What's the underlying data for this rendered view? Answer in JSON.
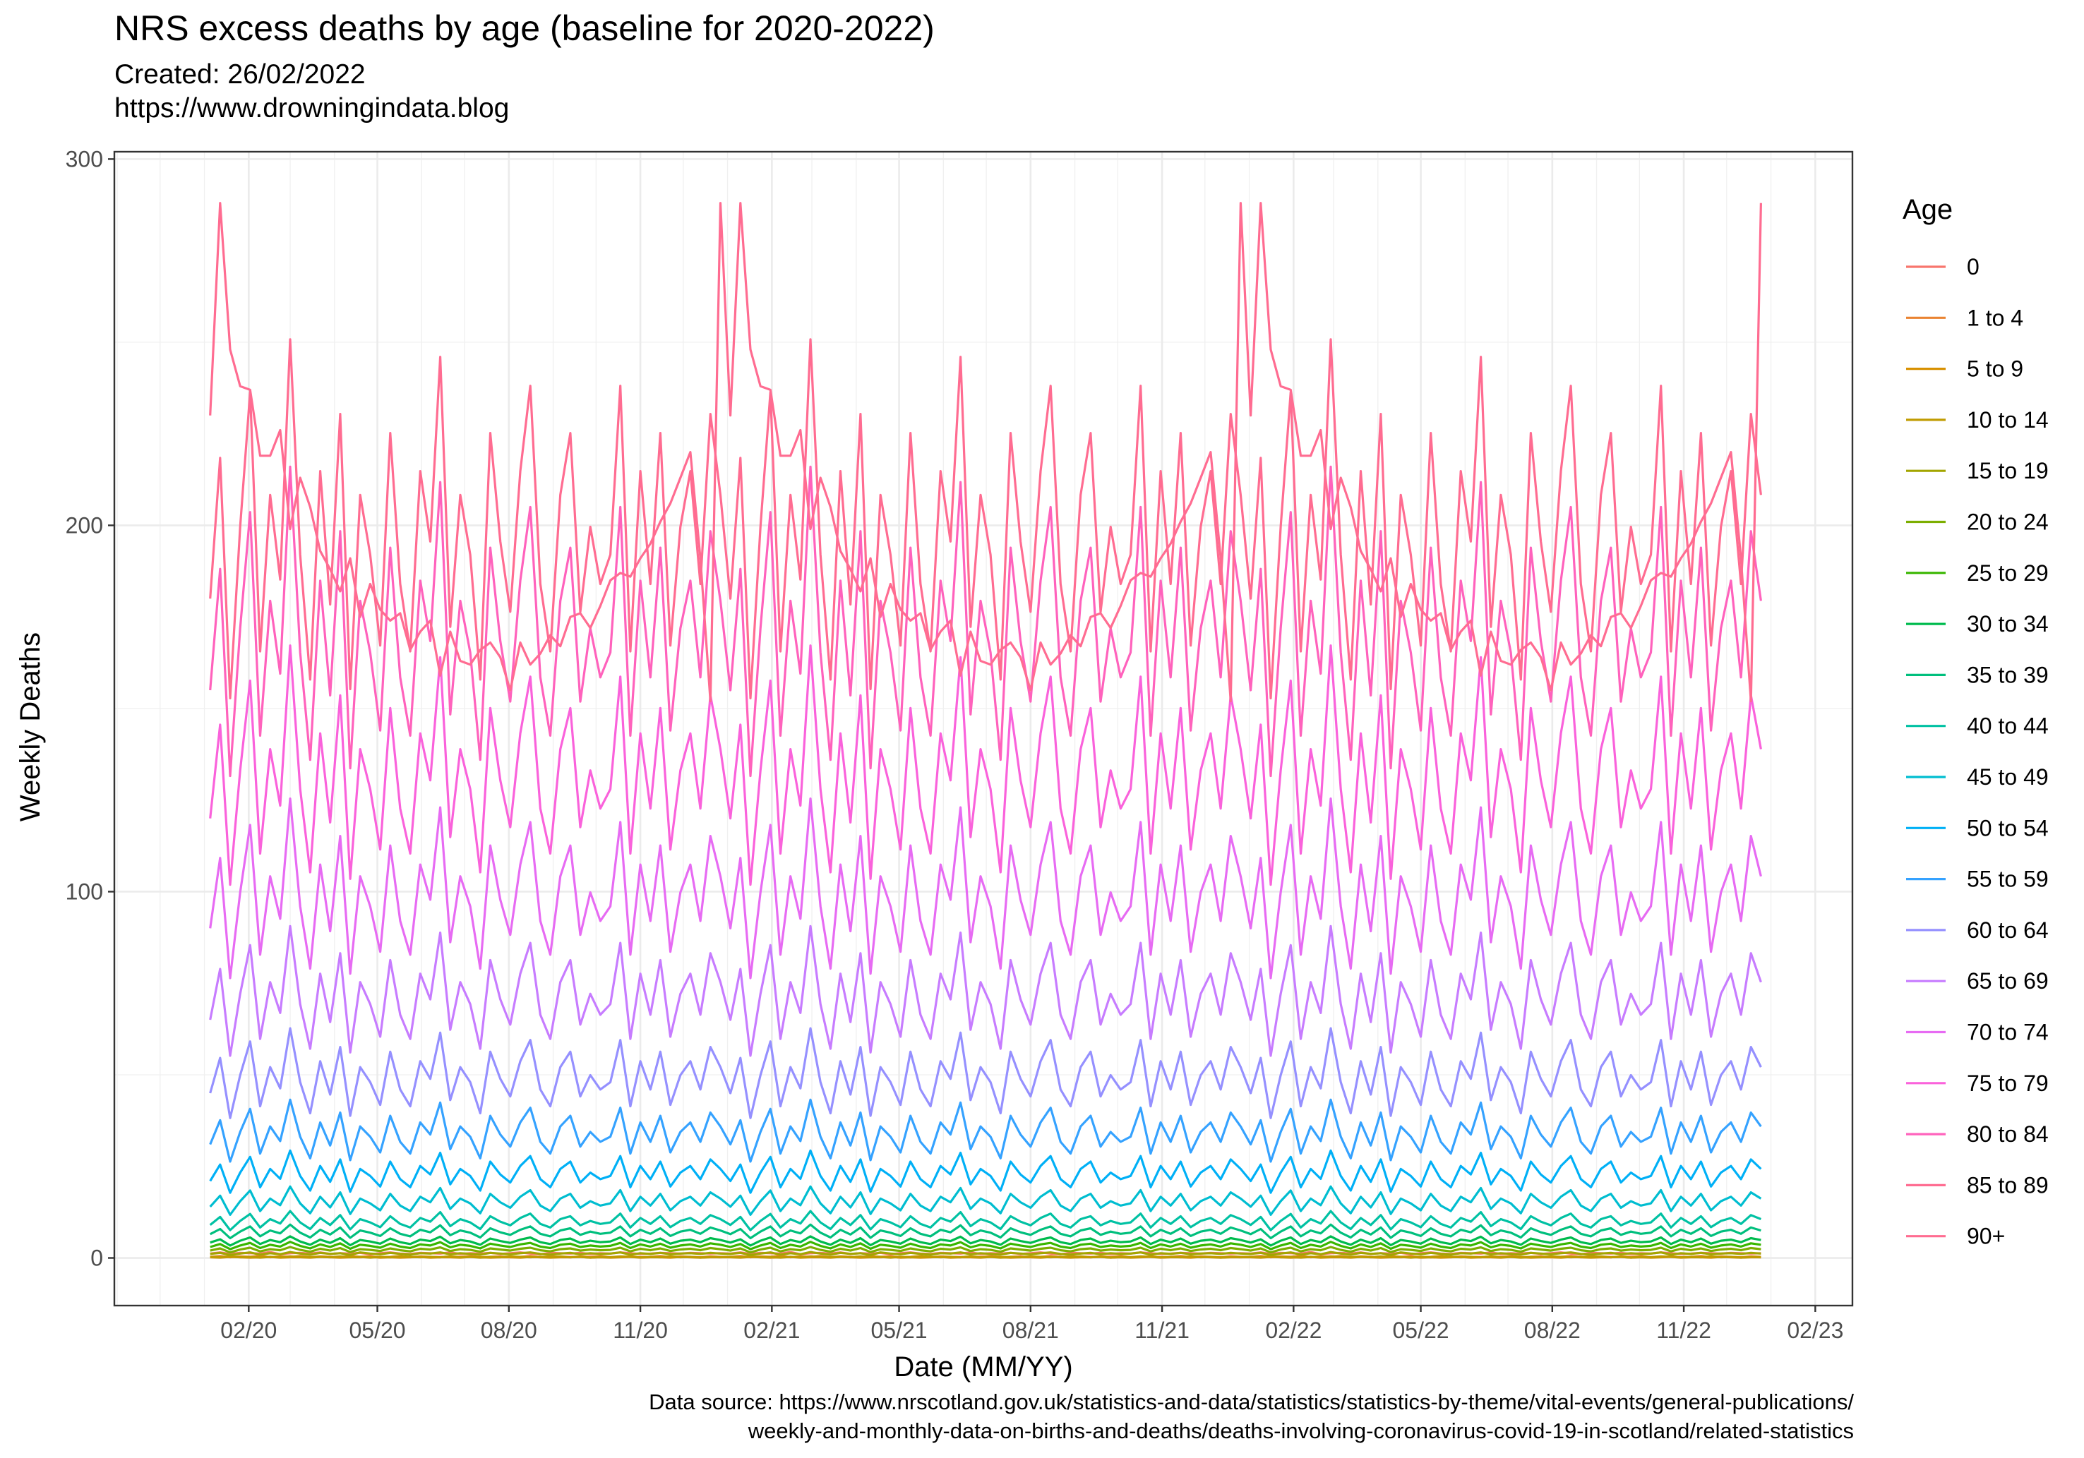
{
  "title": "NRS excess deaths by age (baseline for 2020-2022)",
  "subtitle_line1": "Created:  26/02/2022",
  "subtitle_line2": "https://www.drowningindata.blog",
  "caption_line1": "Data source: https://www.nrscotland.gov.uk/statistics-and-data/statistics/statistics-by-theme/vital-events/general-publications/",
  "caption_line2": "weekly-and-monthly-data-on-births-and-deaths/deaths-involving-coronavirus-covid-19-in-scotland/related-statistics",
  "chart_data": {
    "type": "line",
    "xlabel": "Date (MM/YY)",
    "ylabel": "Weekly Deaths",
    "x_tick_labels": [
      "02/20",
      "05/20",
      "08/20",
      "11/20",
      "02/21",
      "05/21",
      "08/21",
      "11/21",
      "02/22",
      "05/22",
      "08/22",
      "11/22",
      "02/23"
    ],
    "y_ticks": [
      0,
      100,
      200,
      300
    ],
    "ylim": [
      -13,
      302
    ],
    "xlim": [
      "2019-10-30",
      "2023-02-27"
    ],
    "x_start": "2020-01-05",
    "x_step_days": 7,
    "grid": true,
    "legend_title": "Age",
    "legend_position": "right",
    "period_repeats": 3,
    "series": [
      {
        "name": "0",
        "color": "#F8766D",
        "values": [
          1.2,
          1.5,
          1.1,
          1.4,
          1.3,
          1.2,
          1.6,
          1.0,
          1.3,
          1.4,
          1.2,
          1.5,
          1.1,
          1.3,
          1.2,
          1.4,
          1.0,
          1.3,
          1.5,
          1.2,
          1.1,
          1.4,
          1.3,
          1.2,
          1.5,
          1.1,
          1.3,
          1.2,
          1.4,
          1.1,
          1.3,
          1.5,
          1.2,
          1.0,
          1.4,
          1.3,
          1.2,
          1.4,
          1.1,
          1.3,
          1.2,
          1.5,
          1.3,
          1.1,
          1.2,
          1.4,
          1.3,
          1.2,
          1.4,
          1.3,
          1.2,
          1.3
        ]
      },
      {
        "name": "1 to 4",
        "color": "#EA8331",
        "values": [
          0.3,
          0.5,
          0.2,
          0.4,
          0.3,
          0.6,
          0.2,
          0.4,
          0.3,
          0.5,
          0.2,
          0.4,
          0.3,
          0.2,
          0.5,
          0.3,
          0.4,
          0.2,
          0.3,
          0.5,
          0.2,
          0.4,
          0.3,
          0.2,
          0.4,
          0.3,
          0.5,
          0.2,
          0.3,
          0.4,
          0.2,
          0.3,
          0.5,
          0.2,
          0.4,
          0.3,
          0.2,
          0.4,
          0.3,
          0.5,
          0.2,
          0.3,
          0.4,
          0.2,
          0.3,
          0.5,
          0.2,
          0.4,
          0.3,
          0.2,
          0.4,
          0.3
        ]
      },
      {
        "name": "5 to 9",
        "color": "#D89000",
        "values": [
          0.2,
          0.1,
          0.3,
          0.2,
          0.1,
          0.2,
          0.3,
          0.1,
          0.2,
          0.2,
          0.1,
          0.3,
          0.2,
          0.1,
          0.2,
          0.2,
          0.3,
          0.1,
          0.2,
          0.1,
          0.2,
          0.3,
          0.1,
          0.2,
          0.2,
          0.1,
          0.3,
          0.2,
          0.1,
          0.2,
          0.2,
          0.1,
          0.3,
          0.2,
          0.1,
          0.2,
          0.2,
          0.3,
          0.1,
          0.2,
          0.1,
          0.2,
          0.3,
          0.1,
          0.2,
          0.2,
          0.1,
          0.3,
          0.2,
          0.1,
          0.2,
          0.2
        ]
      },
      {
        "name": "10 to 14",
        "color": "#C09B00",
        "values": [
          0.3,
          0.2,
          0.4,
          0.2,
          0.3,
          0.1,
          0.3,
          0.2,
          0.4,
          0.3,
          0.2,
          0.3,
          0.2,
          0.4,
          0.2,
          0.3,
          0.1,
          0.3,
          0.2,
          0.4,
          0.3,
          0.2,
          0.3,
          0.2,
          0.4,
          0.2,
          0.3,
          0.1,
          0.3,
          0.2,
          0.4,
          0.3,
          0.2,
          0.3,
          0.2,
          0.4,
          0.2,
          0.3,
          0.1,
          0.3,
          0.2,
          0.4,
          0.3,
          0.2,
          0.3,
          0.2,
          0.4,
          0.2,
          0.3,
          0.1,
          0.3,
          0.2
        ]
      },
      {
        "name": "15 to 19",
        "color": "#A3A500",
        "values": [
          1.1,
          1.4,
          0.8,
          1.2,
          1.5,
          0.9,
          1.3,
          1.0,
          1.6,
          1.2,
          0.9,
          1.4,
          1.1,
          1.3,
          0.8,
          1.5,
          1.2,
          1.0,
          1.4,
          1.1,
          0.9,
          1.3,
          1.2,
          1.5,
          1.0,
          1.3,
          1.1,
          0.9,
          1.4,
          1.2,
          1.0,
          1.3,
          1.5,
          1.1,
          0.9,
          1.2,
          1.4,
          1.0,
          1.3,
          1.1,
          1.2,
          1.5,
          0.9,
          1.3,
          1.1,
          1.4,
          1.0,
          1.2,
          1.3,
          1.1,
          1.4,
          1.2
        ]
      },
      {
        "name": "20 to 24",
        "color": "#7CAE00",
        "values": [
          2.0,
          2.6,
          1.5,
          2.3,
          2.8,
          1.8,
          2.4,
          2.1,
          3.0,
          2.2,
          1.7,
          2.5,
          2.0,
          2.7,
          1.6,
          2.4,
          2.2,
          1.9,
          2.6,
          2.1,
          1.8,
          2.5,
          2.3,
          2.9,
          1.9,
          2.4,
          2.2,
          1.7,
          2.6,
          2.3,
          2.0,
          2.5,
          2.8,
          2.1,
          1.8,
          2.4,
          2.6,
          2.0,
          2.3,
          2.1,
          2.2,
          2.8,
          1.8,
          2.5,
          2.1,
          2.6,
          1.9,
          2.3,
          2.5,
          2.1,
          2.7,
          2.4
        ]
      },
      {
        "name": "25 to 29",
        "color": "#39B600",
        "values": [
          3.0,
          3.8,
          2.4,
          3.4,
          4.1,
          2.7,
          3.6,
          3.1,
          4.4,
          3.3,
          2.6,
          3.7,
          3.0,
          4.0,
          2.5,
          3.6,
          3.3,
          2.8,
          3.9,
          3.1,
          2.7,
          3.7,
          3.4,
          4.3,
          2.9,
          3.6,
          3.3,
          2.6,
          3.9,
          3.4,
          3.0,
          3.7,
          4.1,
          3.1,
          2.7,
          3.6,
          3.9,
          3.0,
          3.4,
          3.1,
          3.3,
          4.1,
          2.7,
          3.7,
          3.1,
          3.9,
          2.8,
          3.4,
          3.7,
          3.1,
          4.0,
          3.6
        ]
      },
      {
        "name": "30 to 34",
        "color": "#00BB4E",
        "values": [
          4.2,
          5.1,
          3.4,
          4.7,
          5.6,
          3.8,
          4.9,
          4.3,
          5.9,
          4.5,
          3.6,
          5.0,
          4.1,
          5.4,
          3.5,
          4.9,
          4.5,
          3.9,
          5.3,
          4.3,
          3.8,
          5.0,
          4.6,
          5.8,
          4.0,
          4.9,
          4.5,
          3.6,
          5.3,
          4.6,
          4.1,
          5.0,
          5.6,
          4.3,
          3.8,
          4.9,
          5.3,
          4.1,
          4.7,
          4.3,
          4.5,
          5.6,
          3.8,
          5.0,
          4.3,
          5.3,
          3.9,
          4.7,
          5.0,
          4.3,
          5.4,
          4.9
        ]
      },
      {
        "name": "35 to 39",
        "color": "#00BF7D",
        "values": [
          6.5,
          7.9,
          5.4,
          7.2,
          8.6,
          5.9,
          7.5,
          6.7,
          9.1,
          6.9,
          5.6,
          7.7,
          6.4,
          8.3,
          5.5,
          7.5,
          6.9,
          6.0,
          8.1,
          6.6,
          5.9,
          7.7,
          7.0,
          8.9,
          6.2,
          7.5,
          6.9,
          5.6,
          8.1,
          7.0,
          6.3,
          7.7,
          8.6,
          6.6,
          5.9,
          7.5,
          8.1,
          6.3,
          7.2,
          6.6,
          6.9,
          8.6,
          5.9,
          7.7,
          6.6,
          8.1,
          6.0,
          7.2,
          7.7,
          6.6,
          8.3,
          7.5
        ]
      },
      {
        "name": "40 to 44",
        "color": "#00C1A3",
        "values": [
          9.0,
          11.2,
          7.6,
          10.1,
          12.0,
          8.3,
          10.6,
          9.4,
          12.8,
          9.7,
          7.9,
          10.9,
          9.0,
          11.7,
          7.8,
          10.6,
          9.7,
          8.4,
          11.4,
          9.3,
          8.3,
          10.9,
          9.9,
          12.5,
          8.7,
          10.6,
          9.7,
          7.9,
          11.4,
          9.9,
          8.9,
          10.9,
          12.1,
          9.3,
          8.3,
          10.6,
          11.4,
          8.9,
          10.1,
          9.3,
          9.7,
          12.1,
          8.3,
          10.9,
          9.3,
          11.4,
          8.4,
          10.1,
          10.9,
          9.3,
          11.7,
          10.6
        ]
      },
      {
        "name": "45 to 49",
        "color": "#00BDD0",
        "values": [
          14.0,
          17.0,
          11.8,
          15.5,
          18.4,
          12.8,
          16.2,
          14.4,
          19.5,
          14.9,
          12.2,
          16.7,
          13.8,
          17.9,
          12.0,
          16.2,
          14.9,
          13.0,
          17.5,
          14.3,
          12.8,
          16.7,
          15.2,
          19.1,
          13.4,
          16.2,
          14.9,
          12.2,
          17.5,
          15.2,
          13.7,
          16.7,
          18.5,
          14.3,
          12.8,
          16.2,
          17.5,
          13.7,
          15.5,
          14.3,
          14.9,
          18.5,
          12.8,
          16.7,
          14.3,
          17.5,
          13.0,
          15.5,
          16.7,
          14.3,
          17.9,
          16.2
        ]
      },
      {
        "name": "50 to 54",
        "color": "#00B0F6",
        "values": [
          21.0,
          25.5,
          17.8,
          23.3,
          27.6,
          19.3,
          24.3,
          21.6,
          29.3,
          22.4,
          18.4,
          25.1,
          20.8,
          26.9,
          18.1,
          24.3,
          22.4,
          19.5,
          26.3,
          21.5,
          19.3,
          25.1,
          22.8,
          28.7,
          20.1,
          24.3,
          22.4,
          18.4,
          26.3,
          22.8,
          20.6,
          25.1,
          27.8,
          21.5,
          19.3,
          24.3,
          26.3,
          20.6,
          23.3,
          21.5,
          22.4,
          27.8,
          19.3,
          25.1,
          21.5,
          26.3,
          19.5,
          23.3,
          25.1,
          21.5,
          26.9,
          24.3
        ]
      },
      {
        "name": "55 to 59",
        "color": "#35A2FF",
        "values": [
          31.0,
          37.6,
          26.3,
          34.4,
          40.7,
          28.5,
          35.9,
          31.9,
          43.2,
          33.1,
          27.2,
          37.0,
          30.7,
          39.7,
          26.7,
          35.9,
          33.1,
          28.8,
          38.8,
          31.7,
          28.5,
          37.0,
          33.7,
          42.4,
          29.7,
          35.9,
          33.1,
          27.2,
          38.8,
          33.7,
          30.4,
          37.0,
          41.0,
          31.7,
          28.5,
          35.9,
          38.8,
          30.4,
          34.4,
          31.7,
          33.1,
          41.0,
          28.5,
          37.0,
          31.7,
          38.8,
          28.8,
          34.4,
          37.0,
          31.7,
          39.7,
          35.9
        ]
      },
      {
        "name": "60 to 64",
        "color": "#9590FF",
        "values": [
          45.0,
          54.6,
          38.2,
          49.9,
          59.1,
          41.4,
          52.1,
          46.3,
          62.7,
          48.0,
          39.5,
          53.7,
          44.6,
          57.6,
          38.8,
          52.1,
          48.0,
          41.8,
          56.3,
          46.0,
          41.4,
          53.7,
          48.9,
          61.5,
          43.1,
          52.1,
          48.0,
          39.5,
          56.3,
          48.9,
          44.1,
          53.7,
          59.5,
          46.0,
          41.4,
          52.1,
          56.3,
          44.1,
          49.9,
          46.0,
          48.0,
          59.5,
          41.4,
          53.7,
          46.0,
          56.3,
          41.8,
          49.9,
          53.7,
          46.0,
          57.6,
          52.1
        ]
      },
      {
        "name": "65 to 69",
        "color": "#C77CFF",
        "values": [
          65.0,
          78.9,
          55.2,
          72.1,
          85.4,
          59.8,
          75.3,
          66.9,
          90.6,
          69.3,
          57.1,
          77.6,
          64.4,
          83.2,
          56.1,
          75.3,
          69.3,
          60.4,
          81.3,
          66.4,
          59.8,
          77.6,
          70.6,
          88.8,
          62.3,
          75.3,
          69.3,
          57.1,
          81.3,
          70.6,
          63.7,
          77.6,
          86.0,
          66.4,
          59.8,
          75.3,
          81.3,
          63.7,
          72.1,
          66.4,
          69.3,
          86.0,
          59.8,
          77.6,
          66.4,
          81.3,
          60.4,
          72.1,
          77.6,
          66.4,
          83.2,
          75.3
        ]
      },
      {
        "name": "70 to 74",
        "color": "#E76BF3",
        "values": [
          90.0,
          109.2,
          76.4,
          99.8,
          118.2,
          82.8,
          104.2,
          92.6,
          125.4,
          96.0,
          79.0,
          107.4,
          89.2,
          115.2,
          77.6,
          104.2,
          96.0,
          83.6,
          112.6,
          92.0,
          82.8,
          107.4,
          97.8,
          123.0,
          86.2,
          104.2,
          96.0,
          79.0,
          112.6,
          97.8,
          88.2,
          107.4,
          119.0,
          92.0,
          82.8,
          104.2,
          112.6,
          88.2,
          99.8,
          92.0,
          96.0,
          119.0,
          82.8,
          107.4,
          92.0,
          112.6,
          83.6,
          99.8,
          107.4,
          92.0,
          115.2,
          104.2
        ]
      },
      {
        "name": "75 to 79",
        "color": "#FA62DB",
        "values": [
          120.0,
          145.6,
          101.9,
          133.1,
          157.6,
          110.4,
          138.9,
          123.5,
          167.2,
          128.0,
          105.3,
          143.2,
          118.9,
          153.6,
          103.5,
          138.9,
          128.0,
          111.5,
          150.1,
          122.7,
          110.4,
          143.2,
          130.4,
          164.0,
          114.9,
          138.9,
          128.0,
          105.3,
          150.1,
          130.4,
          117.6,
          143.2,
          158.7,
          122.7,
          110.4,
          138.9,
          150.1,
          117.6,
          133.1,
          122.7,
          128.0,
          158.7,
          110.4,
          143.2,
          122.7,
          150.1,
          111.5,
          133.1,
          143.2,
          122.7,
          153.6,
          138.9
        ]
      },
      {
        "name": "80 to 84",
        "color": "#FF62BC",
        "values": [
          155.0,
          188.1,
          131.6,
          171.9,
          203.6,
          142.6,
          179.4,
          159.5,
          216.0,
          165.3,
          136.0,
          184.9,
          153.6,
          198.4,
          133.7,
          179.4,
          165.3,
          144.0,
          193.9,
          158.5,
          142.6,
          184.9,
          168.4,
          211.8,
          148.4,
          179.4,
          165.3,
          136.0,
          193.9,
          168.4,
          151.9,
          184.9,
          205.0,
          158.5,
          142.6,
          179.4,
          193.9,
          151.9,
          171.9,
          158.5,
          165.3,
          205.0,
          142.6,
          184.9,
          158.5,
          193.9,
          144.0,
          171.9,
          184.9,
          158.5,
          198.4,
          179.4
        ]
      },
      {
        "name": "85 to 89",
        "color": "#FF6C91",
        "values": [
          180.0,
          218.4,
          152.8,
          199.6,
          236.4,
          165.6,
          208.3,
          185.2,
          250.8,
          192.0,
          157.9,
          214.8,
          178.4,
          230.4,
          155.3,
          208.3,
          192.0,
          167.2,
          225.2,
          184.0,
          165.6,
          214.8,
          195.6,
          246.0,
          172.3,
          208.3,
          192.0,
          157.9,
          225.2,
          195.6,
          176.4,
          214.8,
          238.1,
          184.0,
          165.6,
          208.3,
          225.2,
          176.4,
          199.6,
          184.0,
          192.0,
          238.1,
          165.6,
          214.8,
          184.0,
          225.2,
          167.2,
          199.6,
          214.8,
          184.0,
          230.4,
          208.3
        ]
      },
      {
        "name": "90+",
        "color": "#FF6C91",
        "values": [
          230.0,
          288.0,
          248.0,
          238.0,
          237.0,
          219.0,
          219.0,
          226.0,
          199.0,
          213.0,
          205.0,
          193.0,
          188.0,
          182.0,
          191.0,
          175.0,
          184.0,
          177.0,
          174.0,
          176.0,
          166.0,
          171.0,
          174.0,
          159.0,
          171.0,
          163.0,
          162.0,
          166.0,
          168.0,
          164.0,
          155.0,
          168.0,
          162.0,
          165.0,
          170.0,
          167.0,
          175.0,
          176.0,
          172.0,
          178.0,
          185.0,
          187.0,
          186.0,
          191.0,
          195.0,
          201.0,
          206.0,
          213.0,
          220.0,
          191.0,
          152.0,
          288.0
        ]
      }
    ]
  }
}
